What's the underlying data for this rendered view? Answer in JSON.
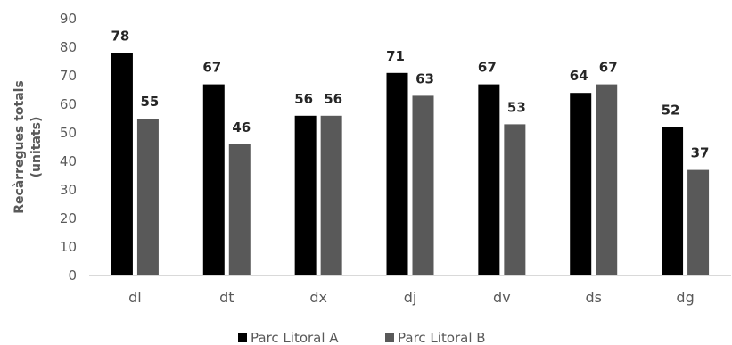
{
  "chart_data": {
    "type": "bar",
    "categories": [
      "dl",
      "dt",
      "dx",
      "dj",
      "dv",
      "ds",
      "dg"
    ],
    "series": [
      {
        "name": "Parc Litoral A",
        "color": "#000000",
        "values": [
          78,
          67,
          56,
          71,
          67,
          64,
          52
        ]
      },
      {
        "name": "Parc Litoral B",
        "color": "#595959",
        "values": [
          55,
          46,
          56,
          63,
          53,
          67,
          37
        ]
      }
    ],
    "ylabel_lines": [
      "Recàrregues totals",
      "(unitats)"
    ],
    "xlabel": "",
    "ylim": [
      0,
      90
    ],
    "yticks": [
      0,
      10,
      20,
      30,
      40,
      50,
      60,
      70,
      80,
      90
    ],
    "grid": false,
    "legend_position": "bottom"
  }
}
